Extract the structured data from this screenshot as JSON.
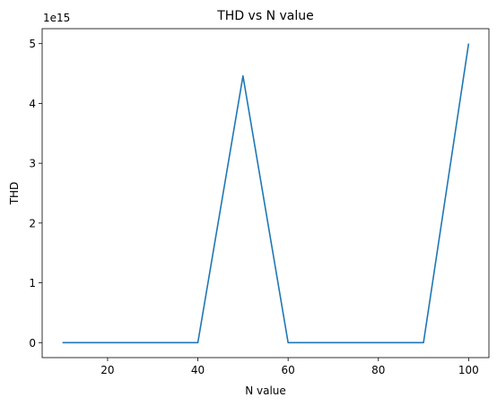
{
  "chart_data": {
    "type": "line",
    "title": "THD vs N value",
    "xlabel": "N value",
    "ylabel": "THD",
    "y_offset_label": "1e15",
    "xlim": [
      5.5,
      104.5
    ],
    "ylim": [
      -0.25,
      5.25
    ],
    "x_ticks": [
      20,
      40,
      60,
      80,
      100
    ],
    "y_ticks": [
      0,
      1,
      2,
      3,
      4,
      5
    ],
    "grid": false,
    "series": [
      {
        "color": "#1f77b4",
        "x": [
          10,
          20,
          30,
          40,
          50,
          60,
          70,
          80,
          90,
          100
        ],
        "y": [
          0,
          0,
          0,
          0,
          4.46,
          0,
          0,
          0,
          0,
          5.0
        ]
      }
    ]
  }
}
